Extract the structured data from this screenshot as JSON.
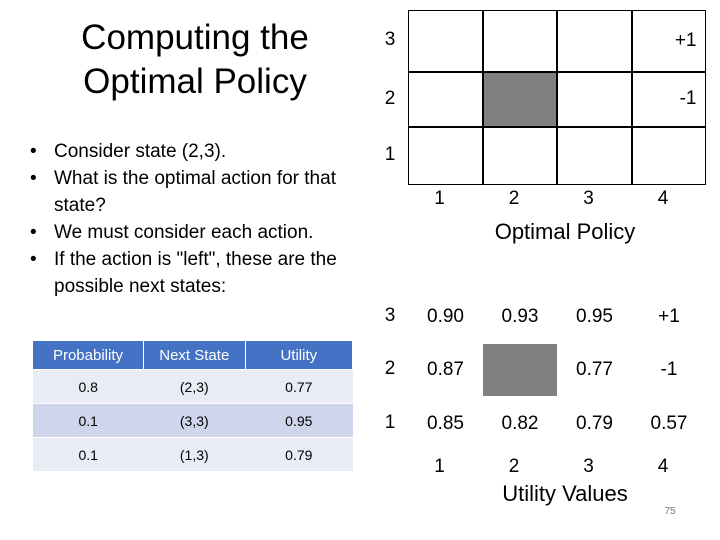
{
  "title": "Computing the Optimal Policy",
  "bullets": [
    "Consider state (2,3).",
    "What is the optimal action for that state?",
    "We must consider each action.",
    "If the action is \"left\", these are the possible next states:"
  ],
  "table": {
    "header": [
      "Probability",
      "Next State",
      "Utility"
    ],
    "rows": [
      [
        "0.8",
        "(2,3)",
        "0.77"
      ],
      [
        "0.1",
        "(3,3)",
        "0.95"
      ],
      [
        "0.1",
        "(1,3)",
        "0.79"
      ]
    ]
  },
  "policy_grid": {
    "row_labels": [
      "3",
      "2",
      "1"
    ],
    "col_labels": [
      "1",
      "2",
      "3",
      "4"
    ],
    "rows": [
      [
        null,
        null,
        null,
        "+1"
      ],
      [
        null,
        null,
        null,
        "-1"
      ],
      [
        null,
        null,
        null,
        null
      ]
    ],
    "caption": "Optimal Policy"
  },
  "utility_grid": {
    "row_labels": [
      "3",
      "2",
      "1"
    ],
    "col_labels": [
      "1",
      "2",
      "3",
      "4"
    ],
    "rows": [
      [
        "0.90",
        "0.93",
        "0.95",
        "+1"
      ],
      [
        "0.87",
        null,
        "0.77",
        "-1"
      ],
      [
        "0.85",
        "0.82",
        "0.79",
        "0.57"
      ]
    ],
    "caption": "Utility Values"
  },
  "page_number": "75"
}
